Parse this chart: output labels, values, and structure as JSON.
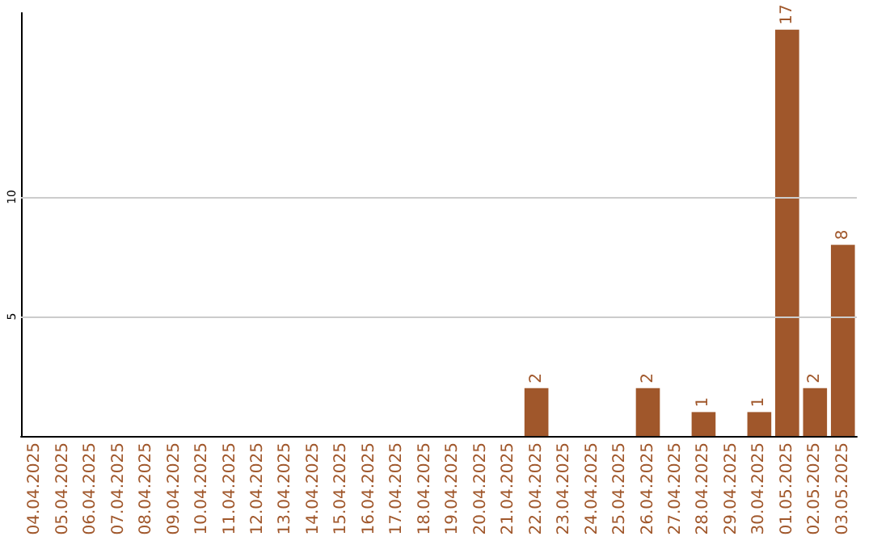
{
  "chart_data": {
    "type": "bar",
    "categories": [
      "04.04.2025",
      "05.04.2025",
      "06.04.2025",
      "07.04.2025",
      "08.04.2025",
      "09.04.2025",
      "10.04.2025",
      "11.04.2025",
      "12.04.2025",
      "13.04.2025",
      "14.04.2025",
      "15.04.2025",
      "16.04.2025",
      "17.04.2025",
      "18.04.2025",
      "19.04.2025",
      "20.04.2025",
      "21.04.2025",
      "22.04.2025",
      "23.04.2025",
      "24.04.2025",
      "25.04.2025",
      "26.04.2025",
      "27.04.2025",
      "28.04.2025",
      "29.04.2025",
      "30.04.2025",
      "01.05.2025",
      "02.05.2025",
      "03.05.2025"
    ],
    "values": [
      0,
      0,
      0,
      0,
      0,
      0,
      0,
      0,
      0,
      0,
      0,
      0,
      0,
      0,
      0,
      0,
      0,
      0,
      2,
      0,
      0,
      0,
      2,
      0,
      1,
      0,
      1,
      17,
      2,
      8
    ],
    "value_labels": [
      null,
      null,
      null,
      null,
      null,
      null,
      null,
      null,
      null,
      null,
      null,
      null,
      null,
      null,
      null,
      null,
      null,
      null,
      "2",
      null,
      null,
      null,
      "2",
      null,
      "1",
      null,
      "1",
      "17",
      "2",
      "8"
    ],
    "color": "#a0572b",
    "ylim": [
      0,
      17.7
    ],
    "yticks": [
      5,
      10
    ],
    "grid": "y"
  }
}
